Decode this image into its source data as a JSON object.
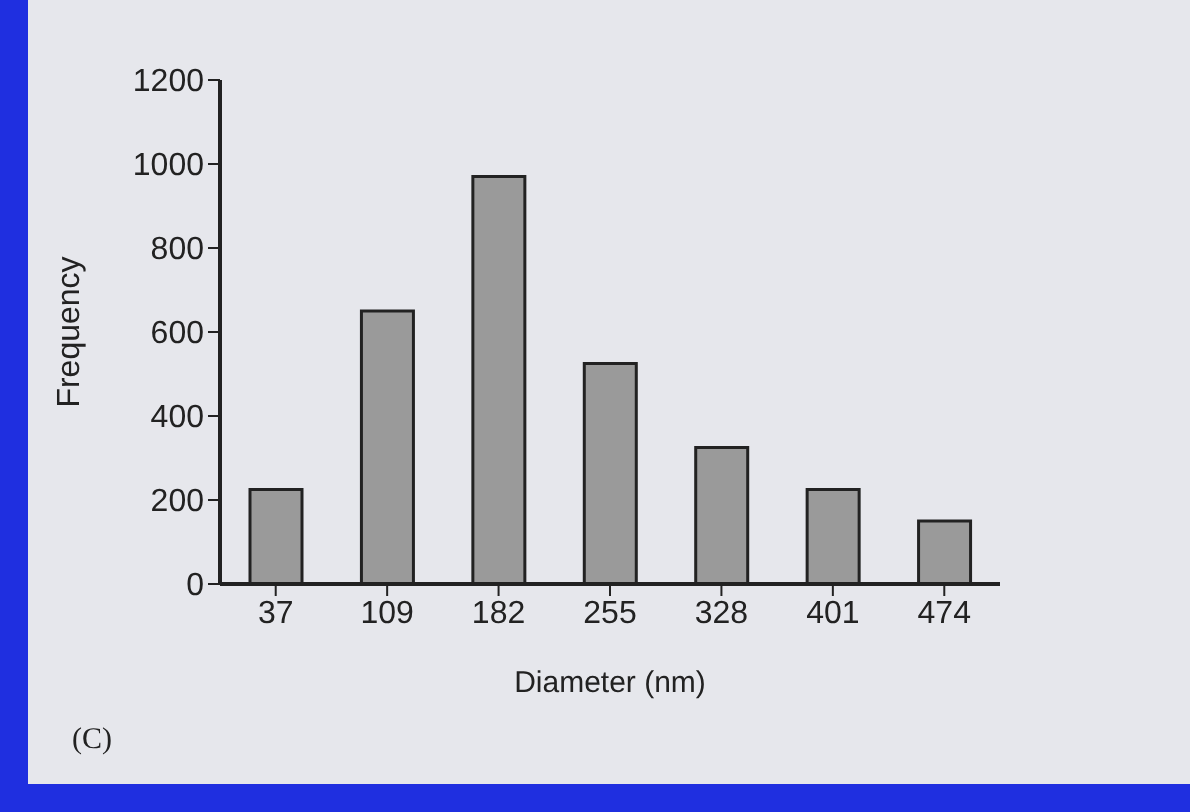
{
  "chart_data": {
    "type": "bar",
    "xlabel": "Diameter (nm)",
    "ylabel": "Frequency",
    "categories": [
      "37",
      "109",
      "182",
      "255",
      "328",
      "401",
      "474"
    ],
    "values": [
      225,
      650,
      970,
      525,
      325,
      225,
      150
    ],
    "color": "#9a9a9a",
    "ylim": [
      0,
      1200
    ],
    "yticks": [
      0,
      200,
      400,
      600,
      800,
      1000,
      1200
    ],
    "annotations": [
      "(C)"
    ]
  }
}
